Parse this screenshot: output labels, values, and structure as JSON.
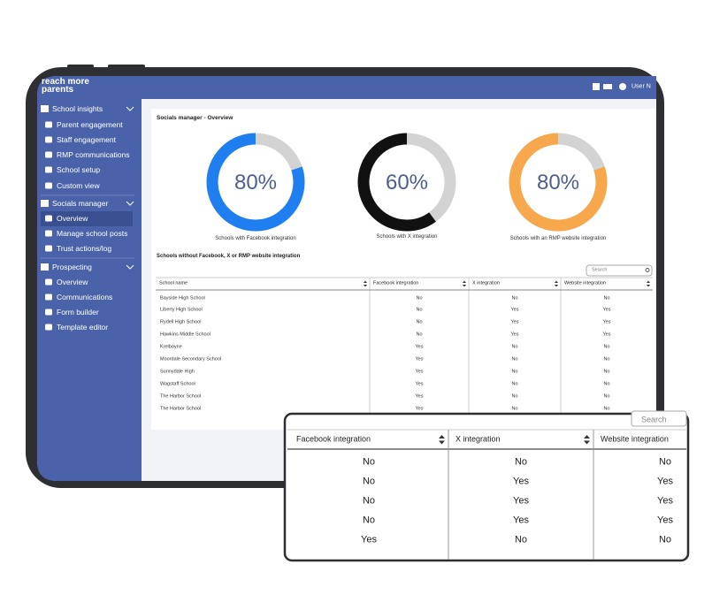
{
  "header": {
    "logo": [
      "reach more",
      "parents"
    ],
    "user": "User N"
  },
  "sidebar": [
    {
      "title": "School insights",
      "items": [
        "Parent engagement",
        "Staff engagement",
        "RMP communications",
        "School setup",
        "Custom view"
      ]
    },
    {
      "title": "Socials manager",
      "items": [
        "Overview",
        "Manage school posts",
        "Trust actions/log"
      ]
    },
    {
      "title": "Prospecting",
      "items": [
        "Overview",
        "Communications",
        "Form builder",
        "Template editor"
      ]
    }
  ],
  "page_title": "Socials manager - Overview",
  "donuts": [
    {
      "value": 80,
      "label": "80%",
      "caption": "Schools with Facebook integration",
      "color": "#1f7ef0"
    },
    {
      "value": 60,
      "label": "60%",
      "caption": "Schools with X integration",
      "color": "#111111"
    },
    {
      "value": 80,
      "label": "80%",
      "caption": "Schools with an RMP website integration",
      "color": "#f7a84c"
    }
  ],
  "table": {
    "title": "Schools without Facebook, X or RMP website integration",
    "search": "Search",
    "columns": [
      "School name",
      "Facebook integration",
      "X integration",
      "Website integration"
    ],
    "rows": [
      [
        "Bayside High School",
        "No",
        "No",
        "No"
      ],
      [
        "Liberty High School",
        "No",
        "Yes",
        "Yes"
      ],
      [
        "Rydell High School",
        "No",
        "Yes",
        "Yes"
      ],
      [
        "Hawkins Middle School",
        "No",
        "Yes",
        "Yes"
      ],
      [
        "Krelboyne",
        "Yes",
        "No",
        "No"
      ],
      [
        "Moordale Secondary School",
        "Yes",
        "No",
        "No"
      ],
      [
        "Sunnydale High",
        "Yes",
        "No",
        "No"
      ],
      [
        "Wagstaff School",
        "Yes",
        "No",
        "No"
      ],
      [
        "The Harbor School",
        "Yes",
        "No",
        "No"
      ],
      [
        "The Harbor School",
        "Yes",
        "No",
        "No"
      ]
    ]
  },
  "zoom": {
    "search": "Search",
    "columns": [
      "Facebook integration",
      "X integration",
      "Website integration"
    ],
    "rows": [
      [
        "No",
        "No",
        "No"
      ],
      [
        "No",
        "Yes",
        "Yes"
      ],
      [
        "No",
        "Yes",
        "Yes"
      ],
      [
        "No",
        "Yes",
        "Yes"
      ],
      [
        "Yes",
        "No",
        "No"
      ]
    ]
  }
}
